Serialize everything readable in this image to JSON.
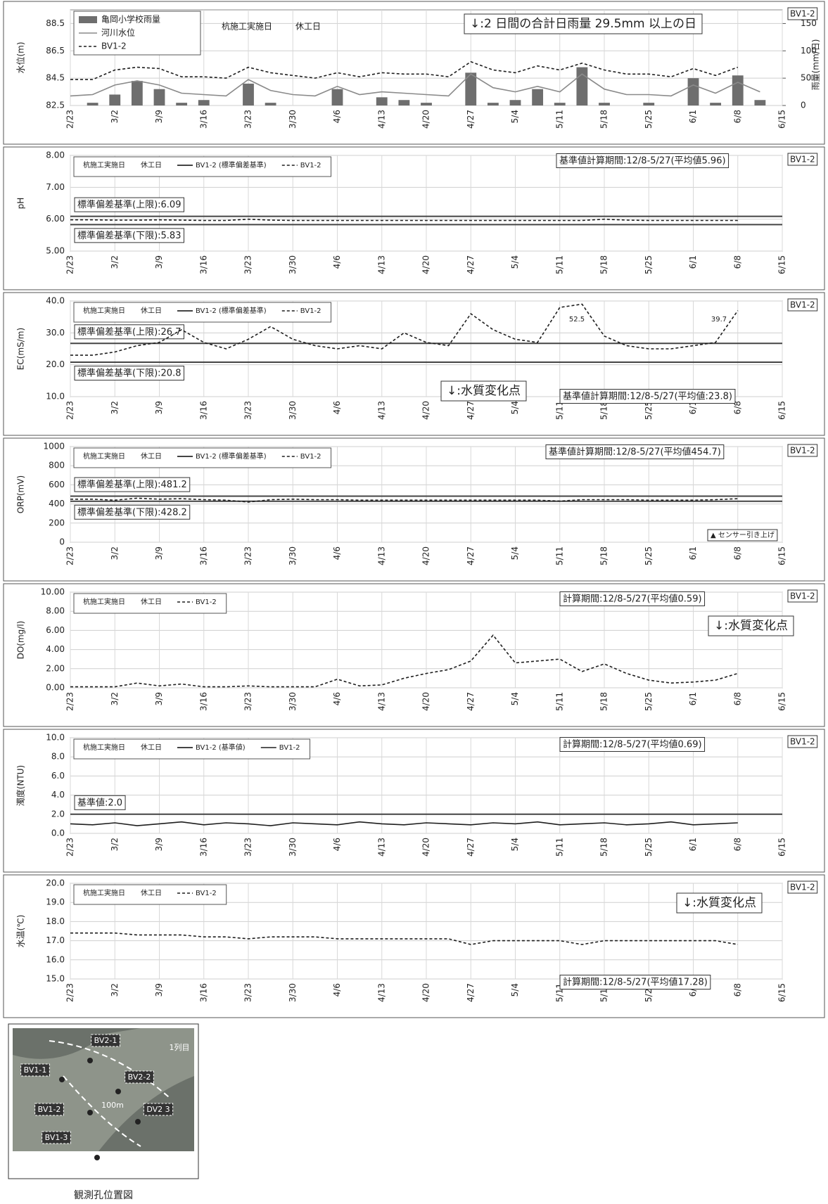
{
  "chart_data": [
    {
      "type": "combo",
      "ylabel": "水位(m)",
      "y2label": "雨量(mm/日)",
      "tag": "BV1-2",
      "categories": [
        "2/23",
        null,
        "3/2",
        null,
        "3/9",
        null,
        "3/16",
        null,
        "3/23",
        null,
        "3/30",
        null,
        "4/6",
        null,
        "4/13",
        null,
        "4/20",
        null,
        "4/27",
        null,
        "5/4",
        null,
        "5/11",
        null,
        "5/18",
        null,
        "5/25",
        null,
        "6/1",
        null,
        "6/8",
        null,
        "6/15"
      ],
      "ylim": [
        82.5,
        89.5
      ],
      "yticks": [
        82.5,
        84.5,
        86.5,
        88.5
      ],
      "y2lim": [
        0,
        175
      ],
      "y2ticks": [
        0,
        50,
        100,
        150
      ],
      "grid": true,
      "legend": [],
      "series": [
        {
          "name": "亀岡小学校雨量",
          "kind": "bar",
          "axis": "y2",
          "color": "#6e6e6e",
          "values": [
            0,
            5,
            20,
            45,
            30,
            5,
            10,
            0,
            40,
            5,
            0,
            0,
            30,
            0,
            15,
            10,
            5,
            0,
            60,
            5,
            10,
            30,
            5,
            70,
            5,
            0,
            5,
            0,
            50,
            5,
            55,
            10,
            null
          ]
        },
        {
          "name": "河川水位",
          "kind": "line",
          "color": "#8a8a8a",
          "dash": false,
          "values": [
            83.2,
            83.3,
            84.0,
            84.3,
            84.0,
            83.4,
            83.3,
            83.2,
            84.4,
            83.6,
            83.3,
            83.2,
            83.9,
            83.3,
            83.5,
            83.4,
            83.3,
            83.2,
            84.8,
            83.8,
            83.5,
            83.9,
            83.5,
            84.8,
            83.7,
            83.3,
            83.3,
            83.2,
            84.0,
            83.4,
            84.2,
            83.5,
            null
          ]
        },
        {
          "name": "BV1-2",
          "kind": "line",
          "color": "#1e1e1e",
          "dash": true,
          "values": [
            84.4,
            84.4,
            85.1,
            85.3,
            85.2,
            84.6,
            84.6,
            84.5,
            85.3,
            84.9,
            84.7,
            84.5,
            84.9,
            84.6,
            84.9,
            84.8,
            84.8,
            84.6,
            85.7,
            85.1,
            84.9,
            85.4,
            85.1,
            85.6,
            85.1,
            84.8,
            84.8,
            84.6,
            85.2,
            84.7,
            85.3,
            null,
            null
          ]
        }
      ],
      "annotations": [
        "杭施工実施日",
        "休工日",
        "↓:2 日間の合計日雨量 29.5mm 以上の日"
      ]
    },
    {
      "type": "line",
      "ylabel": "pH",
      "tag": "BV1-2",
      "categories": [
        "2/23",
        null,
        "3/2",
        null,
        "3/9",
        null,
        "3/16",
        null,
        "3/23",
        null,
        "3/30",
        null,
        "4/6",
        null,
        "4/13",
        null,
        "4/20",
        null,
        "4/27",
        null,
        "5/4",
        null,
        "5/11",
        null,
        "5/18",
        null,
        "5/25",
        null,
        "6/1",
        null,
        "6/8",
        null,
        "6/15"
      ],
      "ylim": [
        5,
        8
      ],
      "yticks": [
        {
          "value": 5,
          "label": "5.00"
        },
        {
          "value": 6,
          "label": "6.00"
        },
        {
          "value": 7,
          "label": "7.00"
        },
        {
          "value": 8,
          "label": "8.00"
        }
      ],
      "grid": true,
      "legend": [
        "杭施工実施日",
        "休工日",
        "BV1-2 (標準偏差基準)"
      ],
      "thresholds": [
        {
          "value": 6.09,
          "label": "標準偏差基準(上限):6.09"
        },
        {
          "value": 5.83,
          "label": "標準偏差基準(下限):5.83"
        }
      ],
      "series": [
        {
          "name": "BV1-2",
          "kind": "line",
          "color": "#1e1e1e",
          "dash": true,
          "values": [
            5.98,
            5.98,
            5.97,
            5.97,
            5.98,
            5.97,
            5.96,
            5.96,
            6.0,
            5.97,
            5.96,
            5.96,
            5.96,
            5.96,
            5.96,
            5.96,
            5.96,
            5.96,
            5.96,
            5.96,
            5.96,
            5.96,
            5.96,
            5.96,
            6.0,
            5.97,
            5.96,
            5.96,
            5.96,
            5.96,
            5.96,
            null,
            null
          ]
        }
      ],
      "annotations": [
        "基準値計算期間:12/8-5/27(平均値5.96)"
      ]
    },
    {
      "type": "line",
      "ylabel": "EC(mS/m)",
      "tag": "BV1-2",
      "categories": [
        "2/23",
        null,
        "3/2",
        null,
        "3/9",
        null,
        "3/16",
        null,
        "3/23",
        null,
        "3/30",
        null,
        "4/6",
        null,
        "4/13",
        null,
        "4/20",
        null,
        "4/27",
        null,
        "5/4",
        null,
        "5/11",
        null,
        "5/18",
        null,
        "5/25",
        null,
        "6/1",
        null,
        "6/8",
        null,
        "6/15"
      ],
      "ylim": [
        10,
        40
      ],
      "yticks": [
        {
          "value": 10,
          "label": "10.0"
        },
        {
          "value": 20,
          "label": "20.0"
        },
        {
          "value": 30,
          "label": "30.0"
        },
        {
          "value": 40,
          "label": "40.0"
        }
      ],
      "grid": true,
      "legend": [
        "杭施工実施日",
        "休工日",
        "BV1-2 (標準偏差基準)"
      ],
      "thresholds": [
        {
          "value": 26.7,
          "label": "標準偏差基準(上限):26.7"
        },
        {
          "value": 20.8,
          "label": "標準偏差基準(下限):20.8"
        }
      ],
      "series": [
        {
          "name": "BV1-2",
          "kind": "line",
          "color": "#1e1e1e",
          "dash": true,
          "values": [
            23,
            23,
            24,
            26,
            27,
            31,
            27,
            25,
            28,
            32,
            28,
            26,
            25,
            26,
            25,
            30,
            27,
            26,
            36,
            31,
            28,
            27,
            38,
            39,
            29,
            26,
            25,
            25,
            26,
            27,
            37,
            null,
            null
          ]
        }
      ],
      "annotations": [
        "52.5",
        "39.7",
        "↓:水質変化点",
        "基準値計算期間:12/8-5/27(平均値:23.8)"
      ]
    },
    {
      "type": "line",
      "ylabel": "ORP(mV)",
      "tag": "BV1-2",
      "categories": [
        "2/23",
        null,
        "3/2",
        null,
        "3/9",
        null,
        "3/16",
        null,
        "3/23",
        null,
        "3/30",
        null,
        "4/6",
        null,
        "4/13",
        null,
        "4/20",
        null,
        "4/27",
        null,
        "5/4",
        null,
        "5/11",
        null,
        "5/18",
        null,
        "5/25",
        null,
        "6/1",
        null,
        "6/8",
        null,
        "6/15"
      ],
      "ylim": [
        0,
        1000
      ],
      "yticks": [
        0,
        200,
        400,
        600,
        800,
        1000
      ],
      "grid": true,
      "legend": [
        "杭施工実施日",
        "休工日",
        "BV1-2 (標準偏差基準)"
      ],
      "thresholds": [
        {
          "value": 481.2,
          "label": "標準偏差基準(上限):481.2"
        },
        {
          "value": 428.2,
          "label": "標準偏差基準(下限):428.2"
        }
      ],
      "series": [
        {
          "name": "BV1-2",
          "kind": "line",
          "color": "#1e1e1e",
          "dash": true,
          "values": [
            450,
            450,
            440,
            460,
            450,
            455,
            445,
            440,
            420,
            445,
            450,
            445,
            445,
            440,
            440,
            440,
            440,
            440,
            440,
            440,
            440,
            440,
            430,
            445,
            445,
            445,
            440,
            440,
            440,
            445,
            455,
            null,
            null
          ]
        }
      ],
      "annotations": [
        "基準値計算期間:12/8-5/27(平均値454.7)",
        "▲ センサー引き上げ"
      ]
    },
    {
      "type": "line",
      "ylabel": "DO(mg/l)",
      "tag": "BV1-2",
      "categories": [
        "2/23",
        null,
        "3/2",
        null,
        "3/9",
        null,
        "3/16",
        null,
        "3/23",
        null,
        "3/30",
        null,
        "4/6",
        null,
        "4/13",
        null,
        "4/20",
        null,
        "4/27",
        null,
        "5/4",
        null,
        "5/11",
        null,
        "5/18",
        null,
        "5/25",
        null,
        "6/1",
        null,
        "6/8",
        null,
        "6/15"
      ],
      "ylim": [
        0,
        10
      ],
      "yticks": [
        {
          "value": 0,
          "label": "0.00"
        },
        {
          "value": 2,
          "label": "2.00"
        },
        {
          "value": 4,
          "label": "4.00"
        },
        {
          "value": 6,
          "label": "6.00"
        },
        {
          "value": 8,
          "label": "8.00"
        },
        {
          "value": 10,
          "label": "10.00"
        }
      ],
      "grid": true,
      "legend": [
        "杭施工実施日",
        "休工日"
      ],
      "series": [
        {
          "name": "BV1-2",
          "kind": "line",
          "color": "#1e1e1e",
          "dash": true,
          "values": [
            0.1,
            0.1,
            0.1,
            0.5,
            0.2,
            0.4,
            0.1,
            0.1,
            0.2,
            0.1,
            0.1,
            0.1,
            0.9,
            0.2,
            0.3,
            1.0,
            1.5,
            1.9,
            2.8,
            5.5,
            2.6,
            2.8,
            3.0,
            1.7,
            2.5,
            1.5,
            0.8,
            0.5,
            0.6,
            0.8,
            1.5,
            null,
            null
          ]
        }
      ],
      "annotations": [
        "計算期間:12/8-5/27(平均値0.59)",
        "↓:水質変化点"
      ]
    },
    {
      "type": "line",
      "ylabel": "濁度(NTU)",
      "tag": "BV1-2",
      "categories": [
        "2/23",
        null,
        "3/2",
        null,
        "3/9",
        null,
        "3/16",
        null,
        "3/23",
        null,
        "3/30",
        null,
        "4/6",
        null,
        "4/13",
        null,
        "4/20",
        null,
        "4/27",
        null,
        "5/4",
        null,
        "5/11",
        null,
        "5/18",
        null,
        "5/25",
        null,
        "6/1",
        null,
        "6/8",
        null,
        "6/15"
      ],
      "ylim": [
        0,
        10
      ],
      "yticks": [
        {
          "value": 0,
          "label": "0.0"
        },
        {
          "value": 2,
          "label": "2.0"
        },
        {
          "value": 4,
          "label": "4.0"
        },
        {
          "value": 6,
          "label": "6.0"
        },
        {
          "value": 8,
          "label": "8.0"
        },
        {
          "value": 10,
          "label": "10.0"
        }
      ],
      "grid": true,
      "legend": [
        "杭施工実施日",
        "休工日",
        "BV1-2 (基準値)"
      ],
      "thresholds": [
        {
          "value": 2.0,
          "label": "基準値:2.0"
        }
      ],
      "series": [
        {
          "name": "BV1-2",
          "kind": "line",
          "color": "#1e1e1e",
          "dash": false,
          "values": [
            1.0,
            0.9,
            1.1,
            0.8,
            1.0,
            1.2,
            0.9,
            1.1,
            1.0,
            0.8,
            1.1,
            1.0,
            0.9,
            1.2,
            1.0,
            0.9,
            1.1,
            1.0,
            0.9,
            1.1,
            1.0,
            1.2,
            0.9,
            1.0,
            1.1,
            0.9,
            1.0,
            1.2,
            0.9,
            1.0,
            1.1,
            null,
            null
          ]
        }
      ],
      "annotations": [
        "計算期間:12/8-5/27(平均値0.69)"
      ]
    },
    {
      "type": "line",
      "ylabel": "水温(℃)",
      "tag": "BV1-2",
      "categories": [
        "2/23",
        null,
        "3/2",
        null,
        "3/9",
        null,
        "3/16",
        null,
        "3/23",
        null,
        "3/30",
        null,
        "4/6",
        null,
        "4/13",
        null,
        "4/20",
        null,
        "4/27",
        null,
        "5/4",
        null,
        "5/11",
        null,
        "5/18",
        null,
        "5/25",
        null,
        "6/1",
        null,
        "6/8",
        null,
        "6/15"
      ],
      "ylim": [
        15,
        20
      ],
      "yticks": [
        {
          "value": 15,
          "label": "15.0"
        },
        {
          "value": 16,
          "label": "16.0"
        },
        {
          "value": 17,
          "label": "17.0"
        },
        {
          "value": 18,
          "label": "18.0"
        },
        {
          "value": 19,
          "label": "19.0"
        },
        {
          "value": 20,
          "label": "20.0"
        }
      ],
      "grid": true,
      "legend": [
        "杭施工実施日",
        "休工日"
      ],
      "series": [
        {
          "name": "BV1-2",
          "kind": "line",
          "color": "#1e1e1e",
          "dash": true,
          "values": [
            17.4,
            17.4,
            17.4,
            17.3,
            17.3,
            17.3,
            17.2,
            17.2,
            17.1,
            17.2,
            17.2,
            17.2,
            17.1,
            17.1,
            17.1,
            17.1,
            17.1,
            17.1,
            16.8,
            17.0,
            17.0,
            17.0,
            17.0,
            16.8,
            17.0,
            17.0,
            17.0,
            17.0,
            17.0,
            17.0,
            16.8,
            null,
            null
          ]
        }
      ],
      "annotations": [
        "↓:水質変化点",
        "計算期間:12/8-5/27(平均値17.28)"
      ]
    }
  ],
  "figure": {
    "labels": [
      "BV2-1",
      "1列目",
      "BV1-1",
      "BV2-2",
      "100m",
      "BV1-2",
      "DV2 3",
      "BV1-3"
    ],
    "caption": "観測孔位置図"
  }
}
